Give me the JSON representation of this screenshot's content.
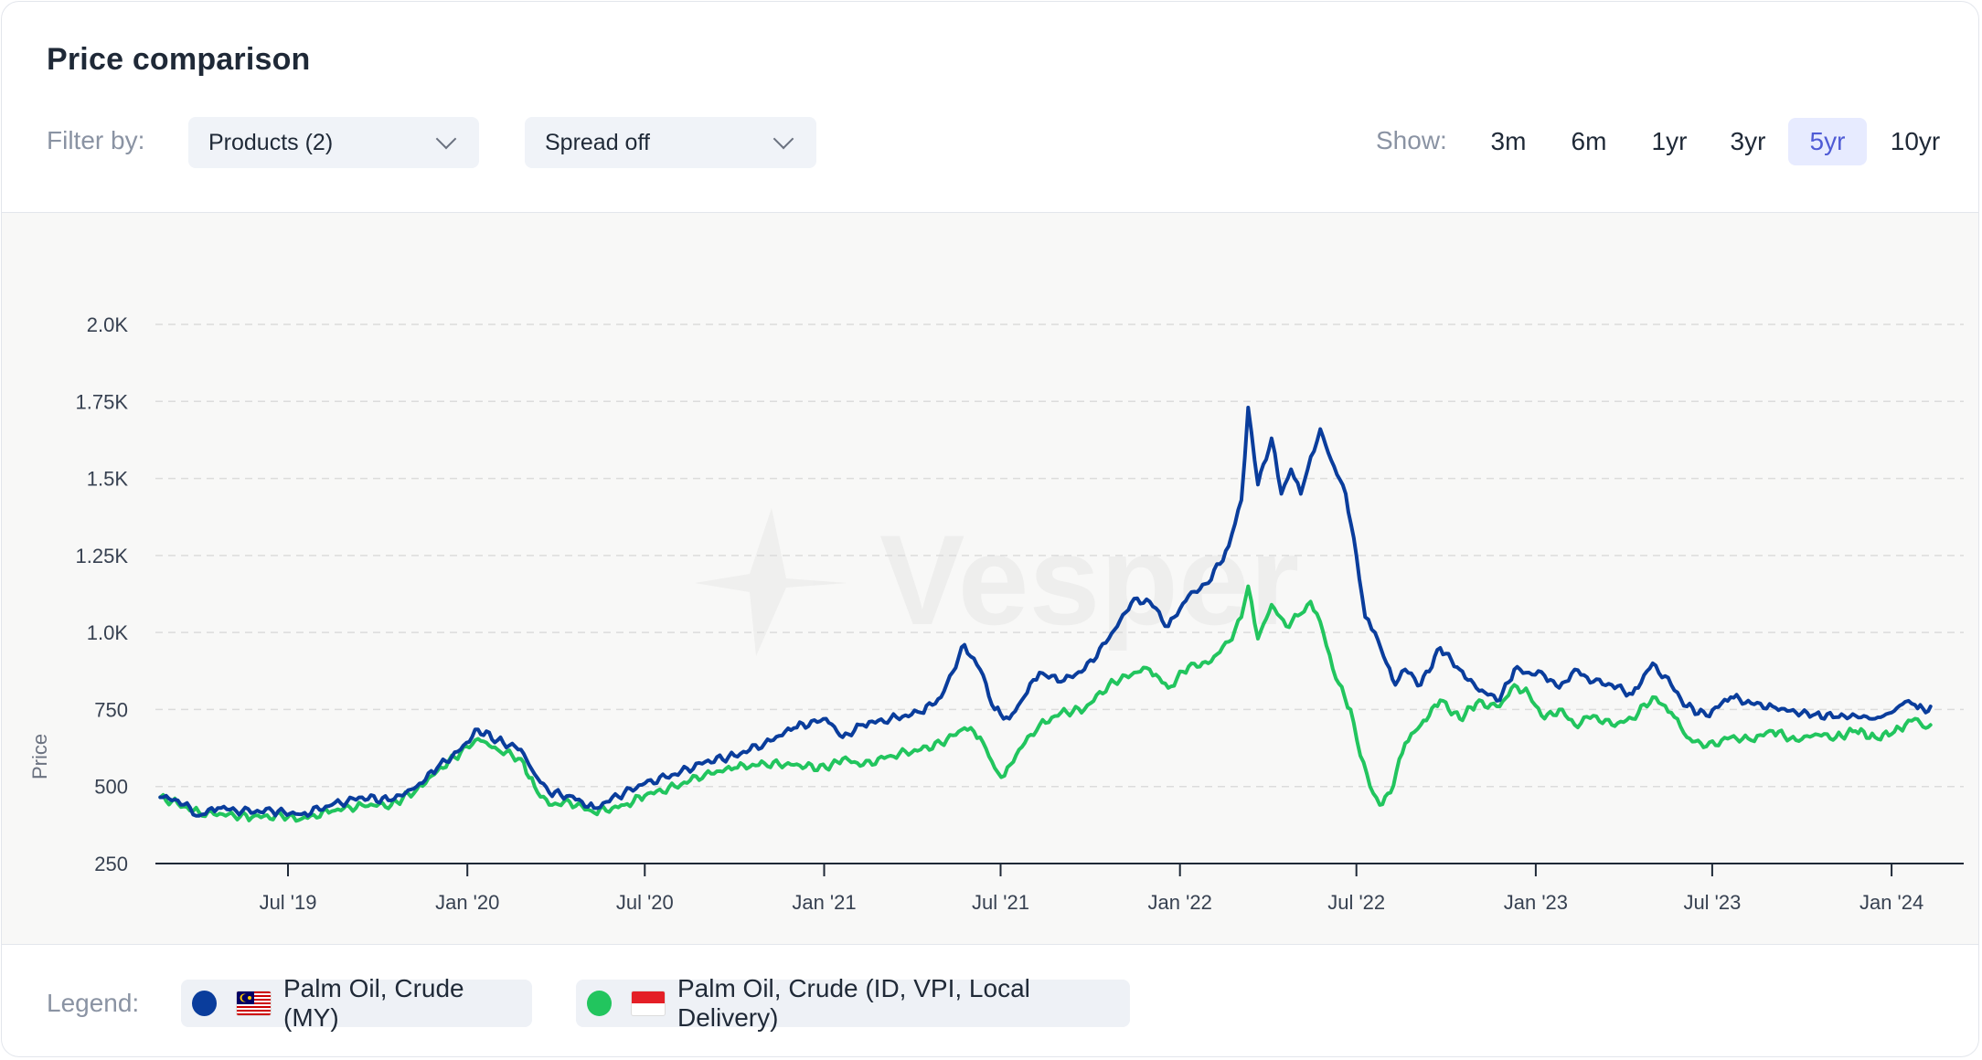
{
  "header": {
    "title": "Price comparison",
    "filter_label": "Filter by:",
    "products_dropdown": "Products (2)",
    "spread_dropdown": "Spread off",
    "show_label": "Show:",
    "ranges": [
      "3m",
      "6m",
      "1yr",
      "3yr",
      "5yr",
      "10yr"
    ],
    "active_range": "5yr"
  },
  "watermark": "Vesper",
  "legend": {
    "label": "Legend:",
    "items": [
      {
        "label": "Palm Oil, Crude (MY)",
        "color": "#0a3d9c",
        "flag_icon": "malaysia-flag-icon"
      },
      {
        "label": "Palm Oil, Crude (ID, VPI, Local Delivery)",
        "color": "#22c55e",
        "flag_icon": "indonesia-flag-icon"
      }
    ]
  },
  "chart_data": {
    "type": "line",
    "ylabel": "Price",
    "xlabel": "",
    "ylim": [
      250,
      2000
    ],
    "yticks": [
      {
        "value": 250,
        "label": "250"
      },
      {
        "value": 500,
        "label": "500"
      },
      {
        "value": 750,
        "label": "750"
      },
      {
        "value": 1000,
        "label": "1.0K"
      },
      {
        "value": 1250,
        "label": "1.25K"
      },
      {
        "value": 1500,
        "label": "1.5K"
      },
      {
        "value": 1750,
        "label": "1.75K"
      },
      {
        "value": 2000,
        "label": "2.0K"
      }
    ],
    "xlim": [
      "2019-02-15",
      "2024-03-15"
    ],
    "xticks": [
      {
        "date": "2019-07-01",
        "label": "Jul '19"
      },
      {
        "date": "2020-01-01",
        "label": "Jan '20"
      },
      {
        "date": "2020-07-01",
        "label": "Jul '20"
      },
      {
        "date": "2021-01-01",
        "label": "Jan '21"
      },
      {
        "date": "2021-07-01",
        "label": "Jul '21"
      },
      {
        "date": "2022-01-01",
        "label": "Jan '22"
      },
      {
        "date": "2022-07-01",
        "label": "Jul '22"
      },
      {
        "date": "2023-01-01",
        "label": "Jan '23"
      },
      {
        "date": "2023-07-01",
        "label": "Jul '23"
      },
      {
        "date": "2024-01-01",
        "label": "Jan '24"
      }
    ],
    "grid": true,
    "series": [
      {
        "name": "Palm Oil, Crude (MY)",
        "color": "#0a3d9c",
        "points": [
          [
            "2019-02-20",
            465
          ],
          [
            "2019-03-10",
            455
          ],
          [
            "2019-04-01",
            405
          ],
          [
            "2019-04-20",
            430
          ],
          [
            "2019-05-15",
            420
          ],
          [
            "2019-06-15",
            420
          ],
          [
            "2019-07-15",
            410
          ],
          [
            "2019-08-15",
            440
          ],
          [
            "2019-09-15",
            465
          ],
          [
            "2019-10-15",
            455
          ],
          [
            "2019-11-10",
            500
          ],
          [
            "2019-12-01",
            560
          ],
          [
            "2019-12-25",
            620
          ],
          [
            "2020-01-12",
            685
          ],
          [
            "2020-02-01",
            650
          ],
          [
            "2020-02-25",
            620
          ],
          [
            "2020-03-10",
            540
          ],
          [
            "2020-03-25",
            480
          ],
          [
            "2020-04-15",
            470
          ],
          [
            "2020-05-10",
            430
          ],
          [
            "2020-06-10",
            480
          ],
          [
            "2020-07-01",
            510
          ],
          [
            "2020-08-01",
            540
          ],
          [
            "2020-09-01",
            580
          ],
          [
            "2020-10-01",
            600
          ],
          [
            "2020-11-01",
            640
          ],
          [
            "2020-12-01",
            690
          ],
          [
            "2021-01-03",
            720
          ],
          [
            "2021-01-20",
            660
          ],
          [
            "2021-02-10",
            700
          ],
          [
            "2021-03-10",
            720
          ],
          [
            "2021-04-10",
            740
          ],
          [
            "2021-05-01",
            790
          ],
          [
            "2021-05-25",
            960
          ],
          [
            "2021-06-10",
            880
          ],
          [
            "2021-06-25",
            750
          ],
          [
            "2021-07-10",
            720
          ],
          [
            "2021-07-25",
            790
          ],
          [
            "2021-08-10",
            870
          ],
          [
            "2021-09-01",
            840
          ],
          [
            "2021-09-25",
            880
          ],
          [
            "2021-10-20",
            980
          ],
          [
            "2021-11-15",
            1110
          ],
          [
            "2021-12-01",
            1100
          ],
          [
            "2021-12-20",
            1020
          ],
          [
            "2022-01-10",
            1120
          ],
          [
            "2022-01-30",
            1160
          ],
          [
            "2022-02-20",
            1280
          ],
          [
            "2022-03-05",
            1430
          ],
          [
            "2022-03-12",
            1730
          ],
          [
            "2022-03-22",
            1480
          ],
          [
            "2022-04-05",
            1630
          ],
          [
            "2022-04-15",
            1450
          ],
          [
            "2022-04-25",
            1530
          ],
          [
            "2022-05-05",
            1450
          ],
          [
            "2022-05-12",
            1530
          ],
          [
            "2022-05-25",
            1660
          ],
          [
            "2022-06-05",
            1560
          ],
          [
            "2022-06-20",
            1450
          ],
          [
            "2022-07-01",
            1250
          ],
          [
            "2022-07-10",
            1050
          ],
          [
            "2022-07-20",
            1000
          ],
          [
            "2022-08-01",
            900
          ],
          [
            "2022-08-10",
            830
          ],
          [
            "2022-08-20",
            880
          ],
          [
            "2022-09-05",
            830
          ],
          [
            "2022-09-25",
            950
          ],
          [
            "2022-10-15",
            880
          ],
          [
            "2022-11-01",
            820
          ],
          [
            "2022-11-25",
            780
          ],
          [
            "2022-12-10",
            880
          ],
          [
            "2022-12-25",
            870
          ],
          [
            "2023-01-10",
            860
          ],
          [
            "2023-01-25",
            820
          ],
          [
            "2023-02-10",
            880
          ],
          [
            "2023-03-01",
            840
          ],
          [
            "2023-03-20",
            830
          ],
          [
            "2023-04-10",
            800
          ],
          [
            "2023-05-01",
            900
          ],
          [
            "2023-05-20",
            830
          ],
          [
            "2023-06-05",
            760
          ],
          [
            "2023-06-25",
            730
          ],
          [
            "2023-07-20",
            790
          ],
          [
            "2023-08-10",
            770
          ],
          [
            "2023-09-01",
            760
          ],
          [
            "2023-09-25",
            740
          ],
          [
            "2023-10-15",
            735
          ],
          [
            "2023-11-05",
            725
          ],
          [
            "2023-11-25",
            730
          ],
          [
            "2023-12-15",
            720
          ],
          [
            "2024-01-01",
            740
          ],
          [
            "2024-01-15",
            775
          ],
          [
            "2024-01-25",
            765
          ],
          [
            "2024-02-05",
            740
          ],
          [
            "2024-02-10",
            760
          ]
        ]
      },
      {
        "name": "Palm Oil, Crude (ID, VPI, Local Delivery)",
        "color": "#22c55e",
        "points": [
          [
            "2019-02-20",
            465
          ],
          [
            "2019-03-10",
            445
          ],
          [
            "2019-04-01",
            415
          ],
          [
            "2019-04-25",
            410
          ],
          [
            "2019-05-25",
            400
          ],
          [
            "2019-06-25",
            405
          ],
          [
            "2019-07-15",
            395
          ],
          [
            "2019-08-15",
            420
          ],
          [
            "2019-09-15",
            440
          ],
          [
            "2019-10-15",
            440
          ],
          [
            "2019-11-10",
            490
          ],
          [
            "2019-12-01",
            550
          ],
          [
            "2019-12-25",
            610
          ],
          [
            "2020-01-12",
            655
          ],
          [
            "2020-02-01",
            620
          ],
          [
            "2020-02-25",
            590
          ],
          [
            "2020-03-10",
            500
          ],
          [
            "2020-03-25",
            440
          ],
          [
            "2020-04-15",
            450
          ],
          [
            "2020-05-10",
            415
          ],
          [
            "2020-06-10",
            440
          ],
          [
            "2020-07-01",
            470
          ],
          [
            "2020-08-01",
            500
          ],
          [
            "2020-09-01",
            540
          ],
          [
            "2020-10-01",
            560
          ],
          [
            "2020-11-01",
            575
          ],
          [
            "2020-12-01",
            570
          ],
          [
            "2021-01-03",
            560
          ],
          [
            "2021-01-20",
            590
          ],
          [
            "2021-02-10",
            570
          ],
          [
            "2021-03-10",
            600
          ],
          [
            "2021-04-10",
            620
          ],
          [
            "2021-05-01",
            640
          ],
          [
            "2021-05-25",
            690
          ],
          [
            "2021-06-10",
            660
          ],
          [
            "2021-06-25",
            560
          ],
          [
            "2021-07-05",
            535
          ],
          [
            "2021-07-20",
            620
          ],
          [
            "2021-08-10",
            700
          ],
          [
            "2021-09-01",
            740
          ],
          [
            "2021-09-25",
            750
          ],
          [
            "2021-10-20",
            830
          ],
          [
            "2021-11-15",
            870
          ],
          [
            "2021-12-01",
            880
          ],
          [
            "2021-12-20",
            820
          ],
          [
            "2022-01-10",
            890
          ],
          [
            "2022-01-30",
            900
          ],
          [
            "2022-02-20",
            970
          ],
          [
            "2022-03-05",
            1050
          ],
          [
            "2022-03-12",
            1150
          ],
          [
            "2022-03-22",
            980
          ],
          [
            "2022-04-05",
            1090
          ],
          [
            "2022-04-20",
            1020
          ],
          [
            "2022-05-05",
            1060
          ],
          [
            "2022-05-15",
            1100
          ],
          [
            "2022-05-28",
            1000
          ],
          [
            "2022-06-10",
            850
          ],
          [
            "2022-06-25",
            750
          ],
          [
            "2022-07-05",
            600
          ],
          [
            "2022-07-15",
            500
          ],
          [
            "2022-07-25",
            440
          ],
          [
            "2022-08-05",
            480
          ],
          [
            "2022-08-20",
            640
          ],
          [
            "2022-09-05",
            700
          ],
          [
            "2022-09-25",
            780
          ],
          [
            "2022-10-15",
            720
          ],
          [
            "2022-11-01",
            770
          ],
          [
            "2022-11-25",
            760
          ],
          [
            "2022-12-10",
            830
          ],
          [
            "2022-12-25",
            800
          ],
          [
            "2023-01-10",
            720
          ],
          [
            "2023-01-25",
            750
          ],
          [
            "2023-02-10",
            700
          ],
          [
            "2023-03-01",
            730
          ],
          [
            "2023-03-20",
            700
          ],
          [
            "2023-04-10",
            720
          ],
          [
            "2023-05-01",
            790
          ],
          [
            "2023-05-20",
            740
          ],
          [
            "2023-06-05",
            660
          ],
          [
            "2023-06-25",
            630
          ],
          [
            "2023-07-20",
            660
          ],
          [
            "2023-08-10",
            650
          ],
          [
            "2023-09-01",
            680
          ],
          [
            "2023-09-25",
            650
          ],
          [
            "2023-10-15",
            670
          ],
          [
            "2023-11-05",
            660
          ],
          [
            "2023-11-25",
            680
          ],
          [
            "2023-12-15",
            660
          ],
          [
            "2024-01-01",
            670
          ],
          [
            "2024-01-15",
            700
          ],
          [
            "2024-01-25",
            720
          ],
          [
            "2024-02-05",
            690
          ],
          [
            "2024-02-10",
            700
          ]
        ]
      }
    ]
  }
}
